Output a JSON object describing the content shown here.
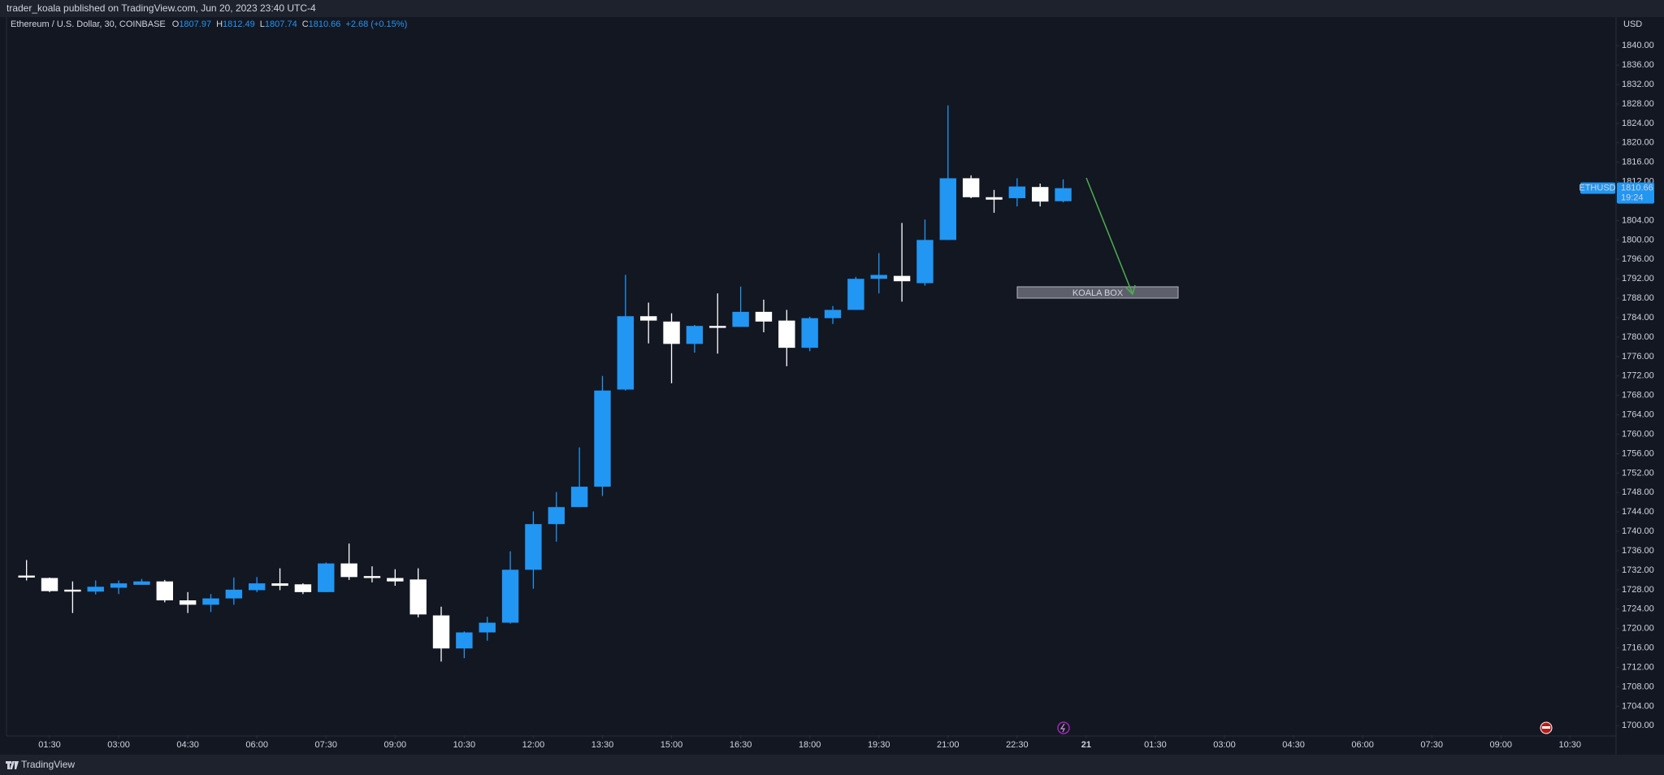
{
  "header": {
    "published": "trader_koala published on TradingView.com, Jun 20, 2023 23:40 UTC-4"
  },
  "footer": {
    "brand": "TradingView"
  },
  "chart_data": {
    "type": "candlestick",
    "legend": {
      "symbol": "Ethereum / U.S. Dollar, 30, COINBASE",
      "o": "O",
      "h": "H",
      "l": "L",
      "c": "C",
      "change": "+2.68 (+0.15%)"
    },
    "currency": "USD",
    "price_tag": {
      "symbol": "ETHUSD",
      "countdown": "19:24"
    },
    "annotations": [
      {
        "text": "KOALA BOX"
      }
    ],
    "up_color": "#2196f3",
    "down_color": "#ffffff",
    "x": [
      1,
      1.5,
      2,
      2.5,
      3,
      3.5,
      4,
      4.5,
      5,
      5.5,
      6,
      6.5,
      7,
      7.5,
      8,
      8.5,
      9,
      9.5,
      10,
      10.5,
      11,
      11.5,
      12,
      12.5,
      13,
      13.5,
      14,
      14.5,
      15,
      15.5,
      16,
      16.5,
      17,
      17.5,
      18,
      18.5,
      19,
      19.5,
      20,
      20.5,
      21,
      21.5,
      22,
      22.5,
      23,
      23.5
    ],
    "open": [
      1730.9,
      1730.4,
      1728.0,
      1727.6,
      1728.4,
      1729.0,
      1729.7,
      1725.8,
      1724.9,
      1726.2,
      1727.9,
      1729.3,
      1729.1,
      1727.5,
      1733.4,
      1730.8,
      1730.4,
      1730.1,
      1722.7,
      1715.9,
      1719.2,
      1721.2,
      1732.1,
      1741.5,
      1745.0,
      1749.2,
      1769.2,
      1784.3,
      1783.2,
      1778.6,
      1782.3,
      1782.1,
      1785.2,
      1783.4,
      1777.8,
      1783.9,
      1785.6,
      1792.0,
      1792.6,
      1791.1,
      1800.0,
      1812.7,
      1808.8,
      1808.6,
      1810.9,
      1807.97
    ],
    "high": [
      1734.1,
      1730.5,
      1729.7,
      1729.9,
      1729.9,
      1730.2,
      1730.0,
      1727.5,
      1727.1,
      1730.5,
      1730.6,
      1732.4,
      1729.3,
      1733.6,
      1737.5,
      1732.8,
      1732.2,
      1732.4,
      1724.5,
      1719.4,
      1722.4,
      1735.9,
      1744.1,
      1748.1,
      1757.3,
      1772.0,
      1792.8,
      1787.1,
      1784.9,
      1782.5,
      1789.0,
      1790.4,
      1787.7,
      1785.6,
      1784.2,
      1786.4,
      1792.4,
      1797.3,
      1803.5,
      1804.2,
      1827.7,
      1813.3,
      1810.3,
      1812.7,
      1811.6,
      1812.49
    ],
    "low": [
      1729.9,
      1727.5,
      1723.2,
      1727.0,
      1727.1,
      1729.0,
      1725.4,
      1723.2,
      1723.4,
      1724.9,
      1727.5,
      1727.9,
      1727.1,
      1727.5,
      1730.0,
      1729.5,
      1728.8,
      1722.3,
      1713.2,
      1713.9,
      1717.5,
      1721.0,
      1728.2,
      1737.9,
      1745.0,
      1747.3,
      1769.0,
      1778.7,
      1770.5,
      1776.8,
      1776.6,
      1782.1,
      1781.0,
      1774.0,
      1777.1,
      1782.7,
      1785.6,
      1789.0,
      1787.3,
      1790.6,
      1800.0,
      1808.6,
      1805.6,
      1806.9,
      1806.9,
      1807.74
    ],
    "close": [
      1730.5,
      1727.7,
      1727.6,
      1728.6,
      1729.3,
      1729.7,
      1725.8,
      1724.9,
      1726.2,
      1728.0,
      1729.3,
      1728.8,
      1727.5,
      1733.4,
      1730.6,
      1730.4,
      1729.7,
      1722.9,
      1715.9,
      1719.2,
      1721.2,
      1732.1,
      1741.5,
      1745.0,
      1749.2,
      1769.0,
      1784.3,
      1783.4,
      1778.6,
      1782.3,
      1781.9,
      1785.2,
      1783.2,
      1777.8,
      1783.9,
      1785.6,
      1792.0,
      1792.8,
      1791.5,
      1800.0,
      1812.7,
      1808.8,
      1808.3,
      1811.0,
      1807.9,
      1810.66
    ],
    "xlim": [
      0.565,
      35.5
    ],
    "ylim": [
      1698.04,
      1846.39
    ],
    "xticks": [
      {
        "value": 1.5,
        "label": "01:30"
      },
      {
        "value": 3,
        "label": "03:00"
      },
      {
        "value": 4.5,
        "label": "04:30"
      },
      {
        "value": 6,
        "label": "06:00"
      },
      {
        "value": 7.5,
        "label": "07:30"
      },
      {
        "value": 9,
        "label": "09:00"
      },
      {
        "value": 10.5,
        "label": "10:30"
      },
      {
        "value": 12,
        "label": "12:00"
      },
      {
        "value": 13.5,
        "label": "13:30"
      },
      {
        "value": 15,
        "label": "15:00"
      },
      {
        "value": 16.5,
        "label": "16:30"
      },
      {
        "value": 18,
        "label": "18:00"
      },
      {
        "value": 19.5,
        "label": "19:30"
      },
      {
        "value": 21,
        "label": "21:00"
      },
      {
        "value": 22.5,
        "label": "22:30"
      },
      {
        "value": 24,
        "label": "21"
      },
      {
        "value": 25.5,
        "label": "01:30"
      },
      {
        "value": 27,
        "label": "03:00"
      },
      {
        "value": 28.5,
        "label": "04:30"
      },
      {
        "value": 30,
        "label": "06:00"
      },
      {
        "value": 31.5,
        "label": "07:30"
      },
      {
        "value": 33,
        "label": "09:00"
      },
      {
        "value": 34.5,
        "label": "10:30"
      }
    ],
    "yticks": [
      {
        "value": 1700,
        "label": "1700.00"
      },
      {
        "value": 1704,
        "label": "1704.00"
      },
      {
        "value": 1708,
        "label": "1708.00"
      },
      {
        "value": 1712,
        "label": "1712.00"
      },
      {
        "value": 1716,
        "label": "1716.00"
      },
      {
        "value": 1720,
        "label": "1720.00"
      },
      {
        "value": 1724,
        "label": "1724.00"
      },
      {
        "value": 1728,
        "label": "1728.00"
      },
      {
        "value": 1732,
        "label": "1732.00"
      },
      {
        "value": 1736,
        "label": "1736.00"
      },
      {
        "value": 1740,
        "label": "1740.00"
      },
      {
        "value": 1744,
        "label": "1744.00"
      },
      {
        "value": 1748,
        "label": "1748.00"
      },
      {
        "value": 1752,
        "label": "1752.00"
      },
      {
        "value": 1756,
        "label": "1756.00"
      },
      {
        "value": 1760,
        "label": "1760.00"
      },
      {
        "value": 1764,
        "label": "1764.00"
      },
      {
        "value": 1768,
        "label": "1768.00"
      },
      {
        "value": 1772,
        "label": "1772.00"
      },
      {
        "value": 1776,
        "label": "1776.00"
      },
      {
        "value": 1780,
        "label": "1780.00"
      },
      {
        "value": 1784,
        "label": "1784.00"
      },
      {
        "value": 1788,
        "label": "1788.00"
      },
      {
        "value": 1792,
        "label": "1792.00"
      },
      {
        "value": 1796,
        "label": "1796.00"
      },
      {
        "value": 1800,
        "label": "1800.00"
      },
      {
        "value": 1804,
        "label": "1804.00"
      },
      {
        "value": 1808,
        "label": "1808.00"
      },
      {
        "value": 1812,
        "label": "1812.00"
      },
      {
        "value": 1816,
        "label": "1816.00"
      },
      {
        "value": 1820,
        "label": "1820.00"
      },
      {
        "value": 1824,
        "label": "1824.00"
      },
      {
        "value": 1828,
        "label": "1828.00"
      },
      {
        "value": 1832,
        "label": "1832.00"
      },
      {
        "value": 1836,
        "label": "1836.00"
      },
      {
        "value": 1840,
        "label": "1840.00"
      }
    ],
    "grid": false
  }
}
